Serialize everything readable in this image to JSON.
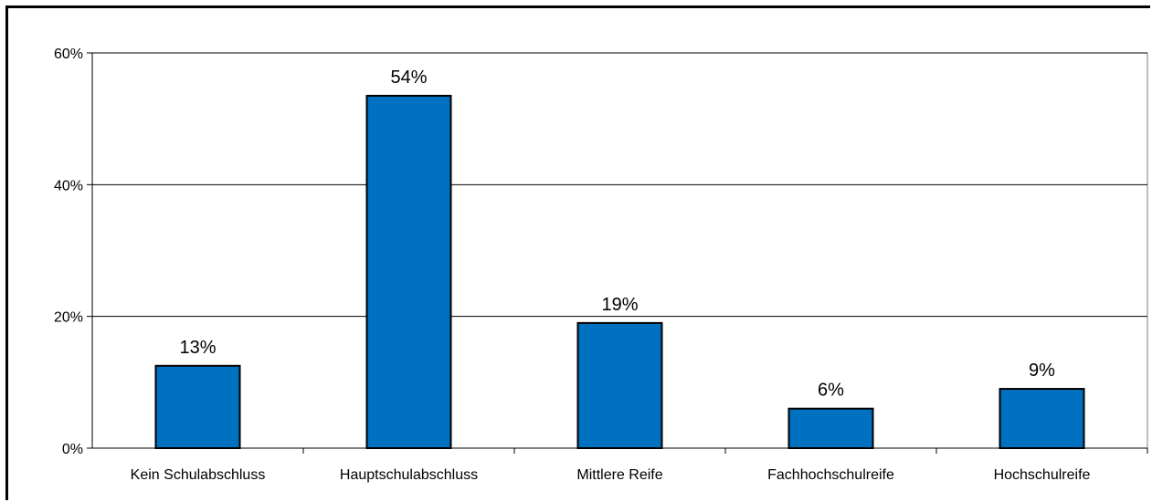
{
  "chart_data": {
    "type": "bar",
    "categories": [
      "Kein Schulabschluss",
      "Hauptschulabschluss",
      "Mittlere Reife",
      "Fachhochschulreife",
      "Hochschulreife"
    ],
    "values": [
      12.5,
      53.5,
      19,
      6,
      9
    ],
    "data_labels": [
      "13%",
      "54%",
      "19%",
      "6%",
      "9%"
    ],
    "ylim": [
      0,
      60
    ],
    "yticks": [
      0,
      20,
      40,
      60
    ],
    "ytick_labels": [
      "0%",
      "20%",
      "40%",
      "60%"
    ],
    "grid": true,
    "bar_color": "#0070C0"
  }
}
